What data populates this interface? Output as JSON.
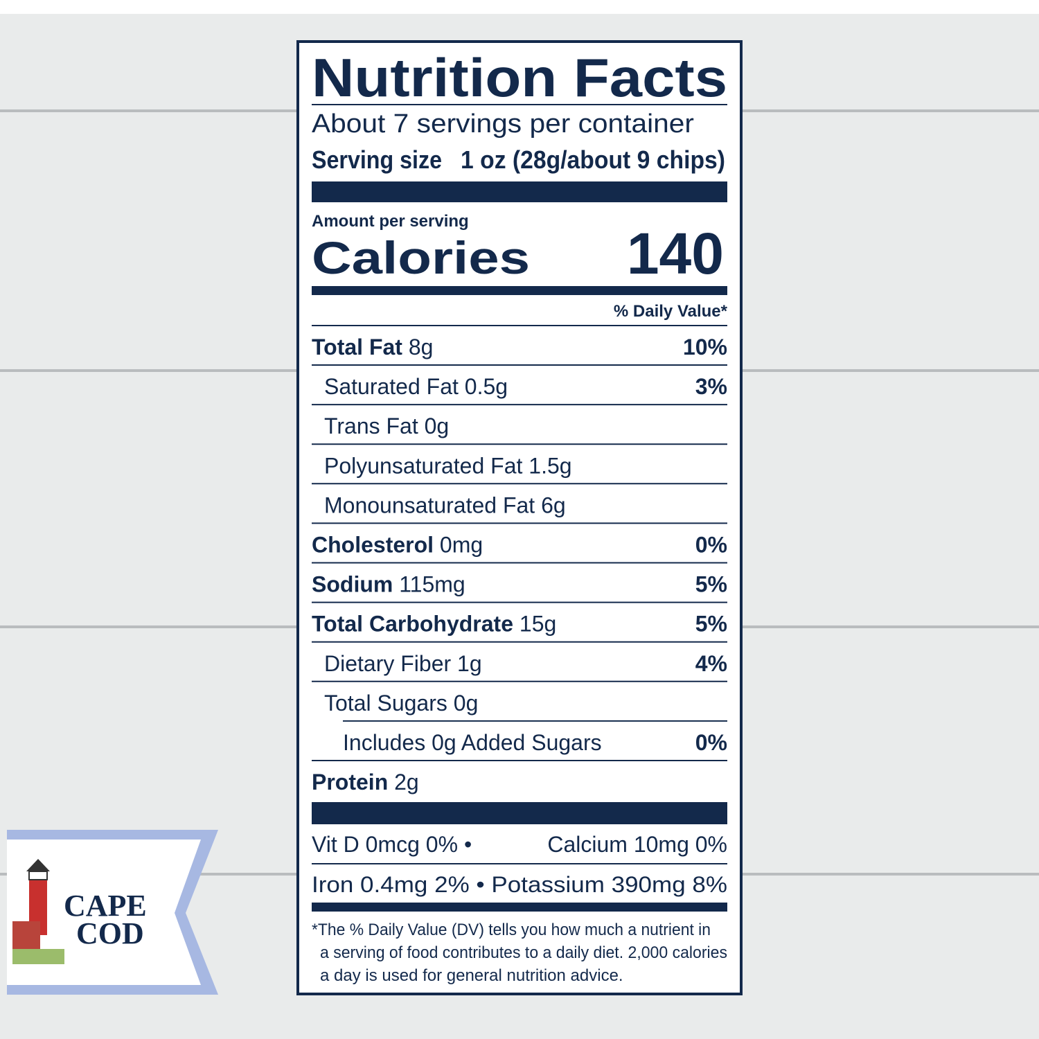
{
  "title": "Nutrition Facts",
  "servings": "About 7 servings per container",
  "serving_size": {
    "label": "Serving size",
    "value": "1 oz (28g/about 9 chips)"
  },
  "amount_per_serving": "Amount per serving",
  "calories": {
    "label": "Calories",
    "value": "140"
  },
  "daily_value_header": "% Daily Value*",
  "nutrients": [
    {
      "name": "Total Fat",
      "amount": "8g",
      "dv": "10%"
    },
    {
      "name": "Saturated Fat",
      "amount": "0.5g",
      "dv": "3%"
    },
    {
      "name": "Trans Fat",
      "amount": "0g"
    },
    {
      "name": "Polyunsaturated Fat",
      "amount": "1.5g"
    },
    {
      "name": "Monounsaturated Fat",
      "amount": "6g"
    },
    {
      "name": "Cholesterol",
      "amount": "0mg",
      "dv": "0%"
    },
    {
      "name": "Sodium",
      "amount": "115mg",
      "dv": "5%"
    },
    {
      "name": "Total Carbohydrate",
      "amount": "15g",
      "dv": "5%"
    },
    {
      "name": "Dietary Fiber",
      "amount": "1g",
      "dv": "4%"
    },
    {
      "name": "Total Sugars",
      "amount": "0g"
    },
    {
      "name": "Includes 0g Added Sugars",
      "dv": "0%"
    },
    {
      "name": "Protein",
      "amount": "2g"
    }
  ],
  "vitamins": [
    [
      "Vit D 0mcg 0% •",
      "Calcium 10mg 0%"
    ],
    [
      "Iron 0.4mg 2% • Potassium 390mg 8%"
    ]
  ],
  "footnote": [
    "*The % Daily Value (DV) tells you how much a nutrient in",
    "a serving of food contributes to a daily diet. 2,000 calories",
    "a day is used for general nutrition advice."
  ],
  "logo": [
    "CAPE",
    "COD"
  ]
}
